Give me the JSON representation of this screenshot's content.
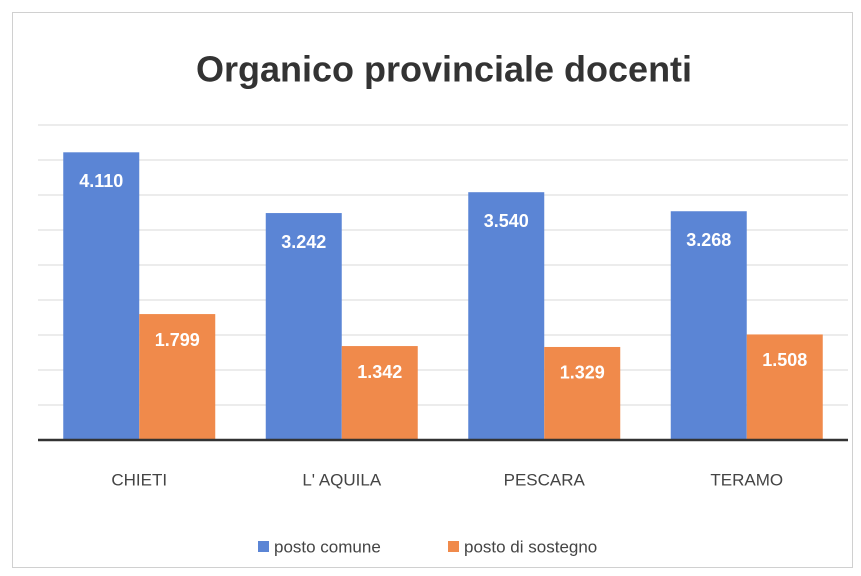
{
  "chart_data": {
    "type": "bar",
    "title": "Organico provinciale docenti",
    "categories": [
      "CHIETI",
      "L' AQUILA",
      "PESCARA",
      "TERAMO"
    ],
    "series": [
      {
        "name": "posto comune",
        "color": "#5b85d5",
        "values": [
          4110,
          3242,
          3540,
          3268
        ],
        "value_labels": [
          "4.110",
          "3.242",
          "3.540",
          "3.268"
        ]
      },
      {
        "name": "posto di sostegno",
        "color": "#f08a4b",
        "values": [
          1799,
          1342,
          1329,
          1508
        ],
        "value_labels": [
          "1.799",
          "1.342",
          "1.329",
          "1.508"
        ]
      }
    ],
    "ylim": [
      0,
      4500
    ],
    "yticks": [
      0,
      500,
      1000,
      1500,
      2000,
      2500,
      3000,
      3500,
      4000,
      4500
    ],
    "grid": true,
    "legend": "bottom"
  }
}
